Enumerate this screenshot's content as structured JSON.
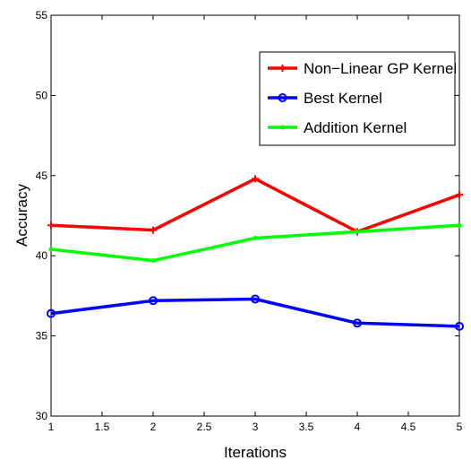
{
  "chart_data": {
    "type": "line",
    "title": "",
    "xlabel": "Iterations",
    "ylabel": "Accuracy",
    "xlim": [
      1,
      5
    ],
    "ylim": [
      30,
      55
    ],
    "x_ticks": [
      "1",
      "1.5",
      "2",
      "2.5",
      "3",
      "3.5",
      "4",
      "4.5",
      "5"
    ],
    "y_ticks": [
      "30",
      "35",
      "40",
      "45",
      "50",
      "55"
    ],
    "grid": false,
    "legend_position": "top-right",
    "x": [
      1,
      2,
      3,
      4,
      5
    ],
    "series": [
      {
        "name": "Non−Linear GP Kernel",
        "color": "#ff0000",
        "marker": "plus",
        "values": [
          41.9,
          41.6,
          44.8,
          41.5,
          43.8
        ]
      },
      {
        "name": "Best Kernel",
        "color": "#0000ff",
        "marker": "circle",
        "values": [
          36.4,
          37.2,
          37.3,
          35.8,
          35.6
        ]
      },
      {
        "name": "Addition Kernel",
        "color": "#00ff00",
        "marker": "point",
        "values": [
          40.4,
          39.7,
          41.1,
          41.5,
          41.9
        ]
      }
    ]
  }
}
